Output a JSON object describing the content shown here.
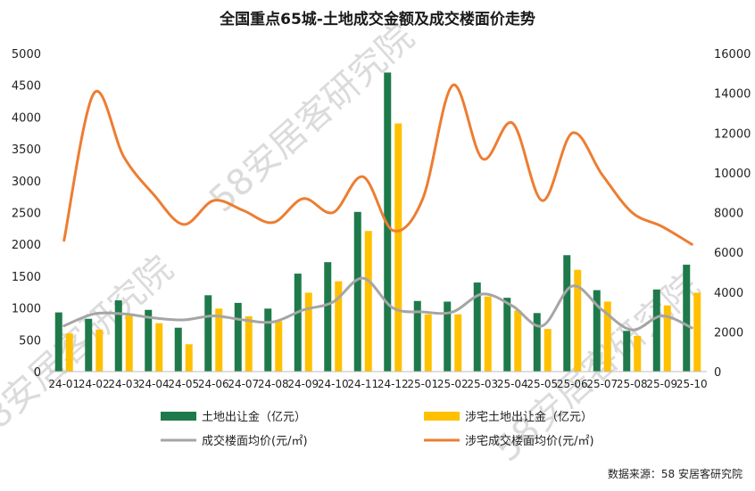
{
  "chart_data": {
    "type": "bar",
    "title": "全国重点65城-土地成交金额及成交楼面价走势",
    "categories": [
      "24-01",
      "24-02",
      "24-03",
      "24-04",
      "24-05",
      "24-06",
      "24-07",
      "24-08",
      "24-09",
      "24-10",
      "24-11",
      "24-12",
      "25-01",
      "25-02",
      "25-03",
      "25-04",
      "25-05",
      "25-06",
      "25-07",
      "25-08",
      "25-09",
      "25-10"
    ],
    "y_left": {
      "min": 0,
      "max": 5000,
      "ticks": [
        0,
        500,
        1000,
        1500,
        2000,
        2500,
        3000,
        3500,
        4000,
        4500,
        5000
      ]
    },
    "y_right": {
      "min": 0,
      "max": 16000,
      "ticks": [
        0,
        2000,
        4000,
        6000,
        8000,
        10000,
        12000,
        14000,
        16000
      ]
    },
    "series": [
      {
        "name": "土地出让金（亿元）",
        "type": "bar",
        "axis": "left",
        "color": "#1e7a4a",
        "values": [
          930,
          830,
          1120,
          970,
          690,
          1200,
          1080,
          990,
          1540,
          1720,
          2510,
          4700,
          1110,
          1100,
          1400,
          1160,
          920,
          1830,
          1280,
          640,
          1290,
          1680
        ]
      },
      {
        "name": "涉宅土地出让金（亿元）",
        "type": "bar",
        "axis": "left",
        "color": "#ffc000",
        "values": [
          600,
          660,
          900,
          760,
          430,
          990,
          870,
          790,
          1240,
          1420,
          2210,
          3900,
          900,
          900,
          1180,
          960,
          670,
          1600,
          1100,
          560,
          1040,
          1240
        ]
      },
      {
        "name": "成交楼面均价(元/㎡)",
        "type": "line",
        "axis": "right",
        "color": "#a5a5a5",
        "values": [
          2300,
          2900,
          2900,
          2700,
          2600,
          2800,
          2600,
          2500,
          3100,
          3500,
          4700,
          3200,
          3000,
          3000,
          3900,
          3300,
          2300,
          4300,
          3100,
          2100,
          2800,
          2200
        ]
      },
      {
        "name": "涉宅成交楼面均价(元/㎡)",
        "type": "line",
        "axis": "right",
        "color": "#ed7d31",
        "values": [
          6600,
          14000,
          10800,
          8900,
          7400,
          8600,
          8100,
          7500,
          8700,
          8000,
          9800,
          7100,
          8700,
          14400,
          10700,
          12500,
          8600,
          12000,
          9900,
          8000,
          7300,
          6400
        ]
      }
    ],
    "grid": false,
    "legend": "bottom",
    "source": "数据来源：58 安居客研究院",
    "watermark": "58安居客研究院"
  }
}
